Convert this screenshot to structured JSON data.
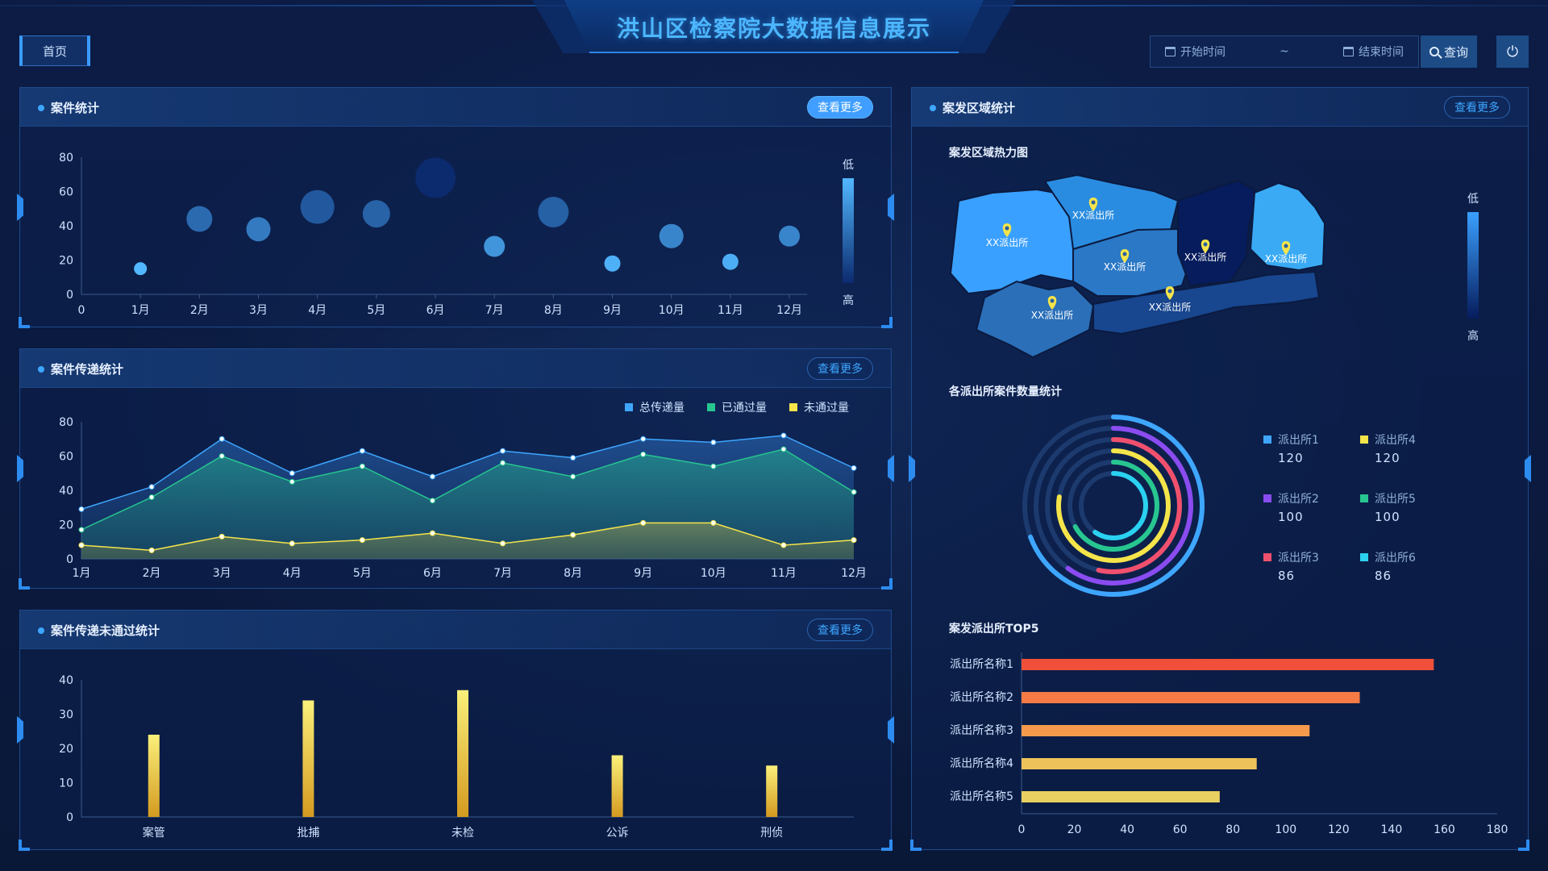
{
  "header": {
    "title": "洪山区检察院大数据信息展示",
    "home_label": "首页",
    "start_placeholder": "开始时间",
    "range_sep": "~",
    "end_placeholder": "结束时间",
    "search_label": "查询",
    "power_icon": "⏻"
  },
  "colors": {
    "accent": "#3ea6ff",
    "bubble_dark": "#0c2a6e",
    "bubble_light": "#52b8ff"
  },
  "panels": {
    "case_stats": {
      "title": "案件统计",
      "more": "查看更多"
    },
    "transfer_stats": {
      "title": "案件传递统计",
      "more": "查看更多"
    },
    "fail_stats": {
      "title": "案件传递未通过统计",
      "more": "查看更多"
    },
    "region_stats": {
      "title": "案发区域统计",
      "more": "查看更多"
    }
  },
  "region": {
    "heatmap_title": "案发区域热力图",
    "ring_title": "各派出所案件数量统计",
    "top5_title": "案发派出所TOP5",
    "scale_low": "低",
    "scale_high": "高",
    "map_labels": [
      "XX派出所",
      "XX派出所",
      "XX派出所",
      "XX派出所",
      "XX派出所",
      "XX派出所",
      "XX派出所"
    ],
    "ring_legend": [
      {
        "name": "派出所1",
        "value": "120",
        "color": "#3ea6ff"
      },
      {
        "name": "派出所4",
        "value": "120",
        "color": "#f5e44a"
      },
      {
        "name": "派出所2",
        "value": "100",
        "color": "#8a4cf0"
      },
      {
        "name": "派出所5",
        "value": "100",
        "color": "#27c690"
      },
      {
        "name": "派出所3",
        "value": "86",
        "color": "#f0506e"
      },
      {
        "name": "派出所6",
        "value": "86",
        "color": "#2ad1f0"
      }
    ]
  },
  "chart_data": [
    {
      "type": "scatter",
      "title": "案件统计",
      "categories": [
        "1月",
        "2月",
        "3月",
        "4月",
        "5月",
        "6月",
        "7月",
        "8月",
        "9月",
        "10月",
        "11月",
        "12月"
      ],
      "values": [
        15,
        44,
        38,
        51,
        47,
        68,
        28,
        48,
        18,
        34,
        19,
        34
      ],
      "sizes": [
        8,
        16,
        15,
        21,
        17,
        25,
        13,
        19,
        10,
        15,
        10,
        13
      ],
      "y_ticks": [
        "0",
        "20",
        "40",
        "60",
        "80"
      ],
      "x_zero": "0",
      "ylim": [
        0,
        80
      ],
      "scale_low": "低",
      "scale_high": "高"
    },
    {
      "type": "area",
      "title": "案件传递统计",
      "categories": [
        "1月",
        "2月",
        "3月",
        "4月",
        "5月",
        "6月",
        "7月",
        "8月",
        "9月",
        "10月",
        "11月",
        "12月"
      ],
      "y_ticks": [
        "0",
        "20",
        "40",
        "60",
        "80"
      ],
      "ylim": [
        0,
        80
      ],
      "series": [
        {
          "name": "总传递量",
          "color": "#3ea6ff",
          "values": [
            29,
            42,
            70,
            50,
            63,
            48,
            63,
            59,
            70,
            68,
            72,
            53
          ]
        },
        {
          "name": "已通过量",
          "color": "#27c690",
          "values": [
            17,
            36,
            60,
            45,
            54,
            34,
            56,
            48,
            61,
            54,
            64,
            39
          ]
        },
        {
          "name": "未通过量",
          "color": "#f5e44a",
          "values": [
            8,
            5,
            13,
            9,
            11,
            15,
            9,
            14,
            21,
            21,
            8,
            11
          ]
        }
      ]
    },
    {
      "type": "bar",
      "title": "案件传递未通过统计",
      "categories": [
        "案管",
        "批捕",
        "未检",
        "公诉",
        "刑侦"
      ],
      "values": [
        24,
        34,
        37,
        18,
        15
      ],
      "y_ticks": [
        "0",
        "10",
        "20",
        "30",
        "40"
      ],
      "ylim": [
        0,
        40
      ]
    },
    {
      "type": "bar",
      "title": "案发派出所TOP5",
      "orientation": "horizontal",
      "categories": [
        "派出所名称1",
        "派出所名称2",
        "派出所名称3",
        "派出所名称4",
        "派出所名称5"
      ],
      "values": [
        156,
        128,
        109,
        89,
        75
      ],
      "colors": [
        "#f0503a",
        "#f57a45",
        "#f59a4c",
        "#eec25a",
        "#e9d060"
      ],
      "x_ticks": [
        "0",
        "20",
        "40",
        "60",
        "80",
        "100",
        "120",
        "140",
        "160",
        "180"
      ],
      "xlim": [
        0,
        180
      ]
    },
    {
      "type": "pie",
      "title": "各派出所案件数量统计",
      "categories": [
        "派出所1",
        "派出所2",
        "派出所3",
        "派出所4",
        "派出所5",
        "派出所6"
      ],
      "values": [
        120,
        100,
        86,
        120,
        100,
        86
      ]
    }
  ]
}
